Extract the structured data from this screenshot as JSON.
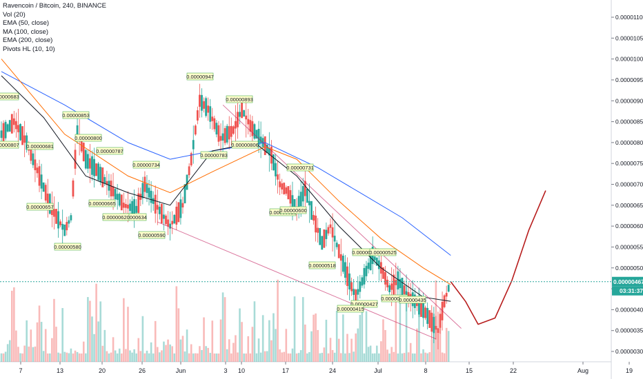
{
  "legend": {
    "title": "Ravencoin / Bitcoin, 240, BINANCE",
    "items": [
      "Vol (20)",
      "EMA (50, close)",
      "MA (100, close)",
      "EMA (200, close)",
      "Pivots HL (10, 10)"
    ]
  },
  "colors": {
    "bull": "#26a69a",
    "bear": "#ef5350",
    "ema50": "#131722",
    "ma100": "#ff6d00",
    "ema200": "#2962ff",
    "projection": "#b71c1c",
    "trendline": "#c2185b",
    "price_line": "#26a69a",
    "pivot_bg": "#ffffcc",
    "pivot_border": "#4caf50"
  },
  "chart_data": {
    "type": "candlestick",
    "symbol": "Ravencoin / Bitcoin",
    "interval": "240",
    "exchange": "BINANCE",
    "y_axis": {
      "min": 3e-06,
      "max": 1.1e-05,
      "ticks": [
        "0.00001100",
        "0.00001050",
        "0.00001000",
        "0.00000950",
        "0.00000900",
        "0.00000850",
        "0.00000800",
        "0.00000750",
        "0.00000700",
        "0.00000650",
        "0.00000600",
        "0.00000550",
        "0.00000500",
        "0.00000450",
        "0.00000400",
        "0.00000350",
        "0.00000300"
      ]
    },
    "x_axis": {
      "ticks": [
        "7",
        "13",
        "20",
        "26",
        "Jun",
        "3",
        "10",
        "17",
        "24",
        "Jul",
        "8",
        "15",
        "22",
        "Aug",
        "19"
      ]
    },
    "last_price": "0.00000467",
    "countdown": "03:31:37",
    "pivot_labels": [
      "0.00000947",
      "0.00000893",
      "0.00000853",
      "0.00000800",
      "0.00000787",
      "0.00000734",
      "0.00000731",
      "0.00000683",
      "0.00000681",
      "0.00000783",
      "0.00000807",
      "0.00000806",
      "0.00000657",
      "0.00000665",
      "0.00000634",
      "0.00000620",
      "0.00000590",
      "0.00000580",
      "0.00000518",
      "0.00000530",
      "0.00000525",
      "0.00000427",
      "0.00000435",
      "0.00000435",
      "0.00000415",
      "0.00000525",
      "0.00000600"
    ],
    "price_path": [
      [
        0,
        8.2e-06
      ],
      [
        6,
        8.5e-06
      ],
      [
        12,
        8e-06
      ],
      [
        18,
        7.2e-06
      ],
      [
        24,
        6.4e-06
      ],
      [
        30,
        5.9e-06
      ],
      [
        33,
        6.2e-06
      ],
      [
        36,
        8.3e-06
      ],
      [
        40,
        7.6e-06
      ],
      [
        46,
        7.3e-06
      ],
      [
        52,
        6.9e-06
      ],
      [
        58,
        6.5e-06
      ],
      [
        64,
        6.4e-06
      ],
      [
        68,
        7e-06
      ],
      [
        72,
        6.6e-06
      ],
      [
        76,
        6.3e-06
      ],
      [
        80,
        6e-06
      ],
      [
        86,
        6.5e-06
      ],
      [
        90,
        7.6e-06
      ],
      [
        94,
        9e-06
      ],
      [
        98,
        8.8e-06
      ],
      [
        104,
        8.1e-06
      ],
      [
        110,
        8.3e-06
      ],
      [
        114,
        8.8e-06
      ],
      [
        118,
        8.4e-06
      ],
      [
        124,
        8e-06
      ],
      [
        128,
        7.7e-06
      ],
      [
        132,
        7e-06
      ],
      [
        136,
        6.8e-06
      ],
      [
        140,
        6.4e-06
      ],
      [
        144,
        6.9e-06
      ],
      [
        148,
        6.2e-06
      ],
      [
        152,
        5.6e-06
      ],
      [
        156,
        6e-06
      ],
      [
        160,
        5.4e-06
      ],
      [
        164,
        4.8e-06
      ],
      [
        168,
        4.3e-06
      ],
      [
        172,
        4.8e-06
      ],
      [
        176,
        5.3e-06
      ],
      [
        180,
        5e-06
      ],
      [
        184,
        4.5e-06
      ],
      [
        188,
        4.7e-06
      ],
      [
        192,
        4.4e-06
      ],
      [
        196,
        4.2e-06
      ],
      [
        200,
        4e-06
      ],
      [
        204,
        3.7e-06
      ],
      [
        207,
        3.5e-06
      ],
      [
        210,
        4.2e-06
      ],
      [
        213,
        4.67e-06
      ]
    ],
    "ema50": [
      [
        0,
        9.6e-06
      ],
      [
        20,
        8.6e-06
      ],
      [
        40,
        7.2e-06
      ],
      [
        60,
        6.8e-06
      ],
      [
        80,
        6.5e-06
      ],
      [
        100,
        7.8e-06
      ],
      [
        120,
        8e-06
      ],
      [
        140,
        7.2e-06
      ],
      [
        160,
        6e-06
      ],
      [
        180,
        5e-06
      ],
      [
        200,
        4.3e-06
      ],
      [
        213,
        4.2e-06
      ]
    ],
    "ma100": [
      [
        0,
        1e-05
      ],
      [
        30,
        8.2e-06
      ],
      [
        60,
        7.2e-06
      ],
      [
        80,
        6.8e-06
      ],
      [
        100,
        7.3e-06
      ],
      [
        125,
        7.9e-06
      ],
      [
        140,
        7.6e-06
      ],
      [
        160,
        6.6e-06
      ],
      [
        180,
        5.7e-06
      ],
      [
        200,
        5e-06
      ],
      [
        213,
        4.6e-06
      ]
    ],
    "ema200": [
      [
        0,
        9.7e-06
      ],
      [
        30,
        8.9e-06
      ],
      [
        60,
        8e-06
      ],
      [
        80,
        7.6e-06
      ],
      [
        100,
        7.8e-06
      ],
      [
        125,
        8e-06
      ],
      [
        150,
        7.4e-06
      ],
      [
        170,
        6.8e-06
      ],
      [
        190,
        6.2e-06
      ],
      [
        213,
        5.3e-06
      ]
    ],
    "projection": [
      [
        213,
        4.67e-06
      ],
      [
        220,
        4.2e-06
      ],
      [
        226,
        3.65e-06
      ],
      [
        234,
        3.8e-06
      ],
      [
        242,
        4.7e-06
      ],
      [
        250,
        5.9e-06
      ],
      [
        258,
        6.85e-06
      ]
    ],
    "trendlines": [
      {
        "from": [
          74,
          6.1e-06
        ],
        "to": [
          206,
          3.3e-06
        ]
      },
      {
        "from": [
          105,
          8.9e-06
        ],
        "to": [
          218,
          3.55e-06
        ]
      }
    ],
    "grid": false,
    "legend_position": "top-left"
  }
}
